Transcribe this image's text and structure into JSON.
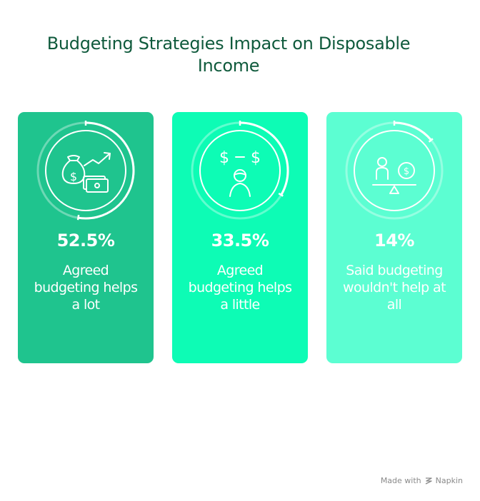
{
  "title": "Budgeting Strategies Impact on Disposable Income",
  "chart_data": {
    "type": "bar",
    "title": "Budgeting Strategies Impact on Disposable Income",
    "categories": [
      "Agreed budgeting helps a lot",
      "Agreed budgeting helps a little",
      "Said budgeting wouldn't help at all"
    ],
    "values": [
      52.5,
      33.5,
      14
    ],
    "value_labels": [
      "52.5%",
      "33.5%",
      "14%"
    ],
    "colors": [
      "#1fc48e",
      "#0dfcb5",
      "#5cfed2"
    ]
  },
  "cards": [
    {
      "pct": "52.5%",
      "desc": "Agreed budgeting helps a lot",
      "icon": "money-bag-growth-icon"
    },
    {
      "pct": "33.5%",
      "desc": "Agreed budgeting helps a little",
      "icon": "person-thinking-money-icon"
    },
    {
      "pct": "14%",
      "desc": "Said budgeting wouldn't help at all",
      "icon": "person-balance-money-icon"
    }
  ],
  "footer": {
    "made_with": "Made with",
    "brand": "Napkin"
  }
}
